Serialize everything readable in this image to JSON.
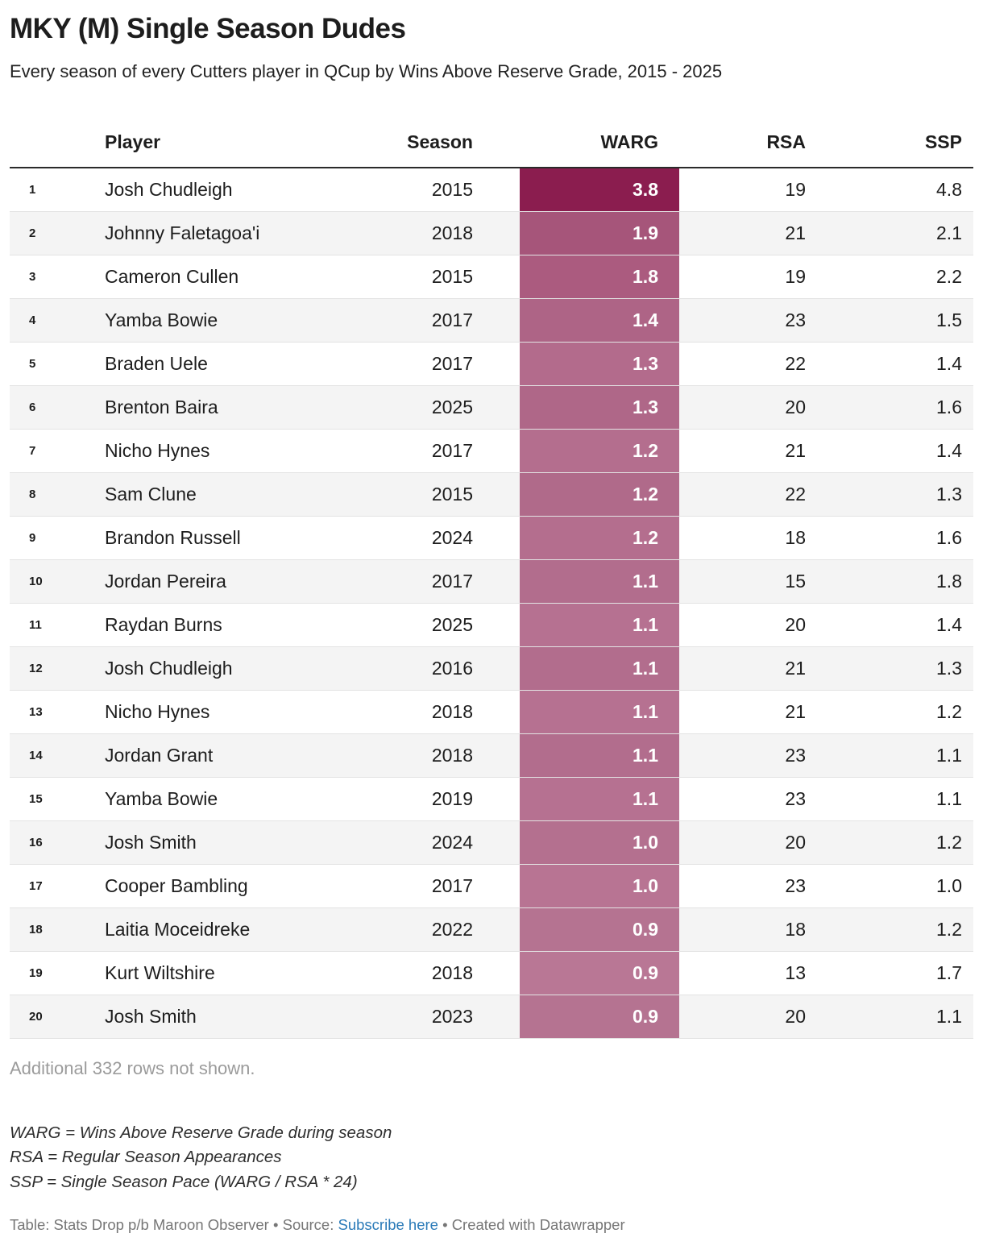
{
  "chart_data": {
    "type": "table",
    "title": "MKY (M) Single Season Dudes",
    "subtitle": "Every season of every Cutters player in QCup by Wins Above Reserve Grade, 2015 - 2025",
    "columns": [
      "Player",
      "Season",
      "WARG",
      "RSA",
      "SSP"
    ],
    "warg_heatmap": {
      "color": "#8b1d4f",
      "min": 0.9,
      "max": 3.8
    },
    "rows": [
      {
        "rank": "1",
        "player": "Josh Chudleigh",
        "season": "2015",
        "warg": "3.8",
        "rsa": "19",
        "ssp": "4.8"
      },
      {
        "rank": "2",
        "player": "Johnny Faletagoa'i",
        "season": "2018",
        "warg": "1.9",
        "rsa": "21",
        "ssp": "2.1"
      },
      {
        "rank": "3",
        "player": "Cameron Cullen",
        "season": "2015",
        "warg": "1.8",
        "rsa": "19",
        "ssp": "2.2"
      },
      {
        "rank": "4",
        "player": "Yamba Bowie",
        "season": "2017",
        "warg": "1.4",
        "rsa": "23",
        "ssp": "1.5"
      },
      {
        "rank": "5",
        "player": "Braden Uele",
        "season": "2017",
        "warg": "1.3",
        "rsa": "22",
        "ssp": "1.4"
      },
      {
        "rank": "6",
        "player": "Brenton Baira",
        "season": "2025",
        "warg": "1.3",
        "rsa": "20",
        "ssp": "1.6"
      },
      {
        "rank": "7",
        "player": "Nicho Hynes",
        "season": "2017",
        "warg": "1.2",
        "rsa": "21",
        "ssp": "1.4"
      },
      {
        "rank": "8",
        "player": "Sam Clune",
        "season": "2015",
        "warg": "1.2",
        "rsa": "22",
        "ssp": "1.3"
      },
      {
        "rank": "9",
        "player": "Brandon Russell",
        "season": "2024",
        "warg": "1.2",
        "rsa": "18",
        "ssp": "1.6"
      },
      {
        "rank": "10",
        "player": "Jordan Pereira",
        "season": "2017",
        "warg": "1.1",
        "rsa": "15",
        "ssp": "1.8"
      },
      {
        "rank": "11",
        "player": "Raydan Burns",
        "season": "2025",
        "warg": "1.1",
        "rsa": "20",
        "ssp": "1.4"
      },
      {
        "rank": "12",
        "player": "Josh Chudleigh",
        "season": "2016",
        "warg": "1.1",
        "rsa": "21",
        "ssp": "1.3"
      },
      {
        "rank": "13",
        "player": "Nicho Hynes",
        "season": "2018",
        "warg": "1.1",
        "rsa": "21",
        "ssp": "1.2"
      },
      {
        "rank": "14",
        "player": "Jordan Grant",
        "season": "2018",
        "warg": "1.1",
        "rsa": "23",
        "ssp": "1.1"
      },
      {
        "rank": "15",
        "player": "Yamba Bowie",
        "season": "2019",
        "warg": "1.1",
        "rsa": "23",
        "ssp": "1.1"
      },
      {
        "rank": "16",
        "player": "Josh Smith",
        "season": "2024",
        "warg": "1.0",
        "rsa": "20",
        "ssp": "1.2"
      },
      {
        "rank": "17",
        "player": "Cooper Bambling",
        "season": "2017",
        "warg": "1.0",
        "rsa": "23",
        "ssp": "1.0"
      },
      {
        "rank": "18",
        "player": "Laitia Moceidreke",
        "season": "2022",
        "warg": "0.9",
        "rsa": "18",
        "ssp": "1.2"
      },
      {
        "rank": "19",
        "player": "Kurt Wiltshire",
        "season": "2018",
        "warg": "0.9",
        "rsa": "13",
        "ssp": "1.7"
      },
      {
        "rank": "20",
        "player": "Josh Smith",
        "season": "2023",
        "warg": "0.9",
        "rsa": "20",
        "ssp": "1.1"
      }
    ]
  },
  "footer": {
    "more_rows": "Additional 332 rows not shown.",
    "notes": [
      "WARG = Wins Above Reserve Grade during season",
      "RSA = Regular Season Appearances",
      "SSP = Single Season Pace (WARG / RSA * 24)"
    ],
    "credit_prefix": "Table: Stats Drop p/b Maroon Observer • Source: ",
    "credit_link": "Subscribe here",
    "credit_suffix": " • Created with Datawrapper"
  }
}
